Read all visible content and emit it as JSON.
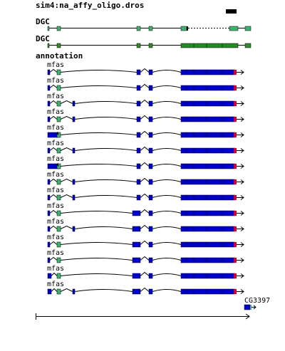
{
  "tracks": {
    "oligo": "sim4:na_affy_oligo.dros",
    "dgc1": "DGC",
    "dgc2": "DGC",
    "annotation": "annotation"
  },
  "transcripts": [
    "mfas",
    "mfas",
    "mfas",
    "mfas",
    "mfas",
    "mfas",
    "mfas",
    "mfas",
    "mfas",
    "mfas",
    "mfas",
    "mfas",
    "mfas",
    "mfas",
    "mfas"
  ],
  "gene": "CG3397",
  "colors": {
    "dgc_exon": "#2e8b2e",
    "dgc_light": "#3cb371",
    "utr": "#3cb371",
    "cds": "#0000cc",
    "stop": "#cc0033",
    "dark": "#000080",
    "black": "#000000"
  }
}
